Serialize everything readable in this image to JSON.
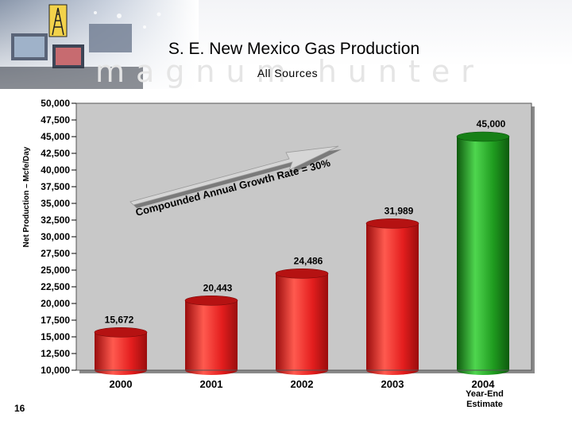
{
  "header": {
    "title": "S. E. New Mexico Gas Production",
    "subtitle": "All Sources",
    "watermark": "magnum hunter"
  },
  "page_number": "16",
  "colors": {
    "bar_red": "#e41e1e",
    "bar_green": "#1f9b1f",
    "plot_background": "#c8c8c8",
    "arrow": "#c8c8c8"
  },
  "chart_data": {
    "type": "bar",
    "title": "",
    "xlabel": "",
    "ylabel": "Net Production – Mcfe/Day",
    "categories": [
      "2000",
      "2001",
      "2002",
      "2003",
      "2004"
    ],
    "category_sublabels": [
      "",
      "",
      "",
      "",
      "Year-End Estimate"
    ],
    "values": [
      15672,
      20443,
      24486,
      31989,
      45000
    ],
    "value_labels": [
      "15,672",
      "20,443",
      "24,486",
      "31,989",
      "45,000"
    ],
    "bar_colors": [
      "#e41e1e",
      "#e41e1e",
      "#e41e1e",
      "#e41e1e",
      "#1f9b1f"
    ],
    "ylim": [
      10000,
      50000
    ],
    "yticks": [
      10000,
      12500,
      15000,
      17500,
      20000,
      22500,
      25000,
      27500,
      30000,
      32500,
      35000,
      37500,
      40000,
      42500,
      45000,
      47500,
      50000
    ],
    "ytick_labels": [
      "10,000",
      "12,500",
      "15,000",
      "17,500",
      "20,000",
      "22,500",
      "25,000",
      "27,500",
      "30,000",
      "32,500",
      "35,000",
      "37,500",
      "40,000",
      "42,500",
      "45,000",
      "47,500",
      "50,000"
    ],
    "grid": false,
    "legend": "none",
    "annotation": "Compounded Annual Growth Rate = 30%"
  }
}
